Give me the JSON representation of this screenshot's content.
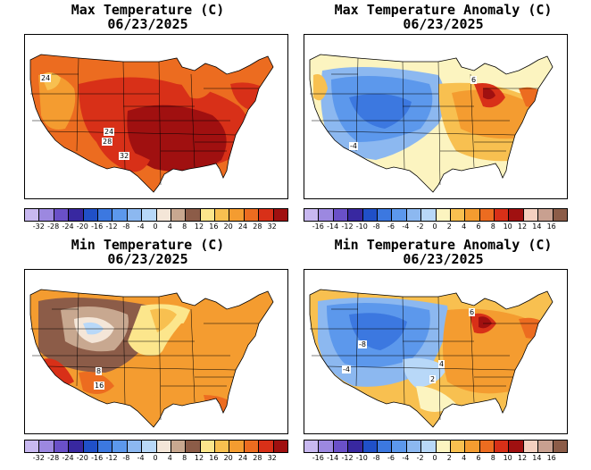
{
  "panels": [
    {
      "id": "max-temp",
      "title": "Max Temperature (C)",
      "date": "06/23/2025",
      "scale_labels": [
        "-32",
        "-28",
        "-24",
        "-20",
        "-16",
        "-12",
        "-8",
        "-4",
        "0",
        "4",
        "8",
        "12",
        "16",
        "20",
        "24",
        "28",
        "32"
      ],
      "scale_colors": [
        "#c8b8f0",
        "#9c88e0",
        "#6a50c8",
        "#3828a0",
        "#2050c8",
        "#3c78e0",
        "#5c98ec",
        "#8cb8f0",
        "#b8d8f8",
        "#f4e6d8",
        "#c8a890",
        "#8c5c48",
        "#fce68c",
        "#f8c050",
        "#f49c30",
        "#ec6c20",
        "#d83018",
        "#a01010"
      ],
      "map_labels": [
        "24",
        "24",
        "28",
        "32"
      ]
    },
    {
      "id": "max-anom",
      "title": "Max Temperature Anomaly (C)",
      "date": "06/23/2025",
      "scale_labels": [
        "-16",
        "-14",
        "-12",
        "-10",
        "-8",
        "-6",
        "-4",
        "-2",
        "0",
        "2",
        "4",
        "6",
        "8",
        "10",
        "12",
        "14",
        "16"
      ],
      "scale_colors": [
        "#c8b8f0",
        "#9c88e0",
        "#6a50c8",
        "#3828a0",
        "#2050c8",
        "#3c78e0",
        "#5c98ec",
        "#8cb8f0",
        "#b8d8f8",
        "#fcf4c0",
        "#f8c050",
        "#f49c30",
        "#ec6c20",
        "#d83018",
        "#a01010",
        "#f4d0c0",
        "#c8a090",
        "#8c5c48"
      ],
      "map_labels": [
        "-4",
        "6"
      ]
    },
    {
      "id": "min-temp",
      "title": "Min Temperature (C)",
      "date": "06/23/2025",
      "scale_labels": [
        "-32",
        "-28",
        "-24",
        "-20",
        "-16",
        "-12",
        "-8",
        "-4",
        "0",
        "4",
        "8",
        "12",
        "16",
        "20",
        "24",
        "28",
        "32"
      ],
      "scale_colors": [
        "#c8b8f0",
        "#9c88e0",
        "#6a50c8",
        "#3828a0",
        "#2050c8",
        "#3c78e0",
        "#5c98ec",
        "#8cb8f0",
        "#b8d8f8",
        "#f4e6d8",
        "#c8a890",
        "#8c5c48",
        "#fce68c",
        "#f8c050",
        "#f49c30",
        "#ec6c20",
        "#d83018",
        "#a01010"
      ],
      "map_labels": [
        "8",
        "16"
      ]
    },
    {
      "id": "min-anom",
      "title": "Min Temperature Anomaly (C)",
      "date": "06/23/2025",
      "scale_labels": [
        "-16",
        "-14",
        "-12",
        "-10",
        "-8",
        "-6",
        "-4",
        "-2",
        "0",
        "2",
        "4",
        "6",
        "8",
        "10",
        "12",
        "14",
        "16"
      ],
      "scale_colors": [
        "#c8b8f0",
        "#9c88e0",
        "#6a50c8",
        "#3828a0",
        "#2050c8",
        "#3c78e0",
        "#5c98ec",
        "#8cb8f0",
        "#b8d8f8",
        "#fcf4c0",
        "#f8c050",
        "#f49c30",
        "#ec6c20",
        "#d83018",
        "#a01010",
        "#f4d0c0",
        "#c8a090",
        "#8c5c48"
      ],
      "map_labels": [
        "-8",
        "-4",
        "6",
        "4",
        "2"
      ]
    }
  ]
}
